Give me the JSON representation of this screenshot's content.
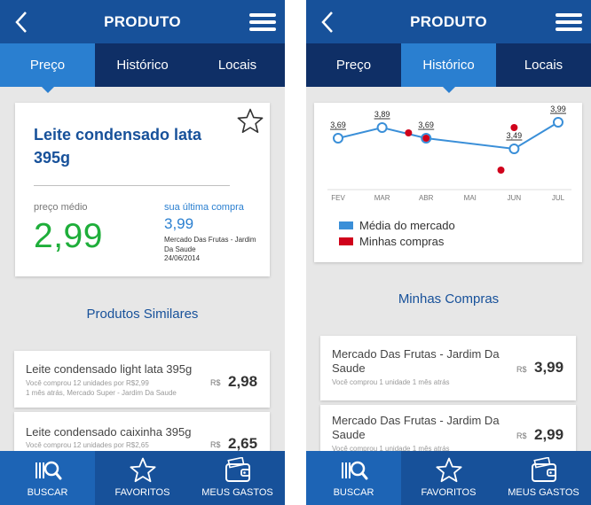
{
  "colors": {
    "brand": "#17519a",
    "tab_bar": "#0f2f66",
    "tab_active": "#2a7fd0",
    "price_green": "#1eae3a",
    "market_line": "#3a8fd8",
    "my_purchases": "#d0021b"
  },
  "left": {
    "header": {
      "title": "PRODUTO",
      "back_icon": "chevron-left-icon",
      "menu_icon": "hamburger-menu-icon"
    },
    "tabs": [
      {
        "label": "Preço",
        "active": true
      },
      {
        "label": "Histórico",
        "active": false
      },
      {
        "label": "Locais",
        "active": false
      }
    ],
    "product": {
      "name": "Leite condensado lata 395g",
      "avg_label": "preço médio",
      "avg_price": "2,99",
      "last_label": "sua última compra",
      "last_price": "3,99",
      "last_store": "Mercado Das Frutas - Jardim Da Saude",
      "last_date": "24/06/2014"
    },
    "similar_title": "Produtos Similares",
    "similar_items": [
      {
        "name": "Leite condensado light lata 395g",
        "sub1": "Você comprou 12 unidades por R$2,99",
        "sub2": "1 mês atrás, Mercado Super - Jardim Da Saude",
        "currency": "R$",
        "price": "2,98"
      },
      {
        "name": "Leite condensado caixinha 395g",
        "sub1": "Você comprou 12 unidades por R$2,65",
        "sub2": "",
        "currency": "R$",
        "price": "2,65"
      }
    ]
  },
  "right": {
    "header": {
      "title": "PRODUTO",
      "back_icon": "chevron-left-icon",
      "menu_icon": "hamburger-menu-icon"
    },
    "tabs": [
      {
        "label": "Preço",
        "active": false
      },
      {
        "label": "Histórico",
        "active": true
      },
      {
        "label": "Locais",
        "active": false
      }
    ],
    "legend": [
      {
        "label": "Média do mercado",
        "color": "#3a8fd8"
      },
      {
        "label": "Minhas compras",
        "color": "#d0021b"
      }
    ],
    "purchases_title": "Minhas Compras",
    "purchases": [
      {
        "name": "Mercado Das Frutas - Jardim Da Saude",
        "sub": "Você comprou 1 unidade 1 mês atrás",
        "currency": "R$",
        "price": "3,99"
      },
      {
        "name": "Mercado Das Frutas - Jardim Da Saude",
        "sub": "Você comprou 1 unidade 1 mês atrás",
        "currency": "R$",
        "price": "2,99"
      }
    ]
  },
  "bottom_nav": [
    {
      "label": "BUSCAR",
      "icon": "barcode-search-icon",
      "active": true
    },
    {
      "label": "FAVORITOS",
      "icon": "star-icon",
      "active": false
    },
    {
      "label": "MEUS GASTOS",
      "icon": "wallet-icon",
      "active": false
    }
  ],
  "chart_data": {
    "type": "line",
    "categories": [
      "FEV",
      "MAR",
      "ABR",
      "MAI",
      "JUN",
      "JUL"
    ],
    "series": [
      {
        "name": "Média do mercado",
        "values": [
          3.69,
          3.89,
          3.69,
          null,
          3.49,
          3.99
        ],
        "labels": [
          "3,69",
          "3,89",
          "3,69",
          "",
          "3,49",
          "3,99"
        ]
      },
      {
        "name": "Minhas compras",
        "points": [
          {
            "x": "MAR",
            "offset": 0.6,
            "y": 3.79
          },
          {
            "x": "ABR",
            "offset": 0.0,
            "y": 3.69
          },
          {
            "x": "JUN",
            "offset": -0.3,
            "y": 3.09
          },
          {
            "x": "JUN",
            "offset": 0.0,
            "y": 3.89
          }
        ]
      }
    ],
    "grid": false,
    "legend_position": "bottom-left"
  }
}
